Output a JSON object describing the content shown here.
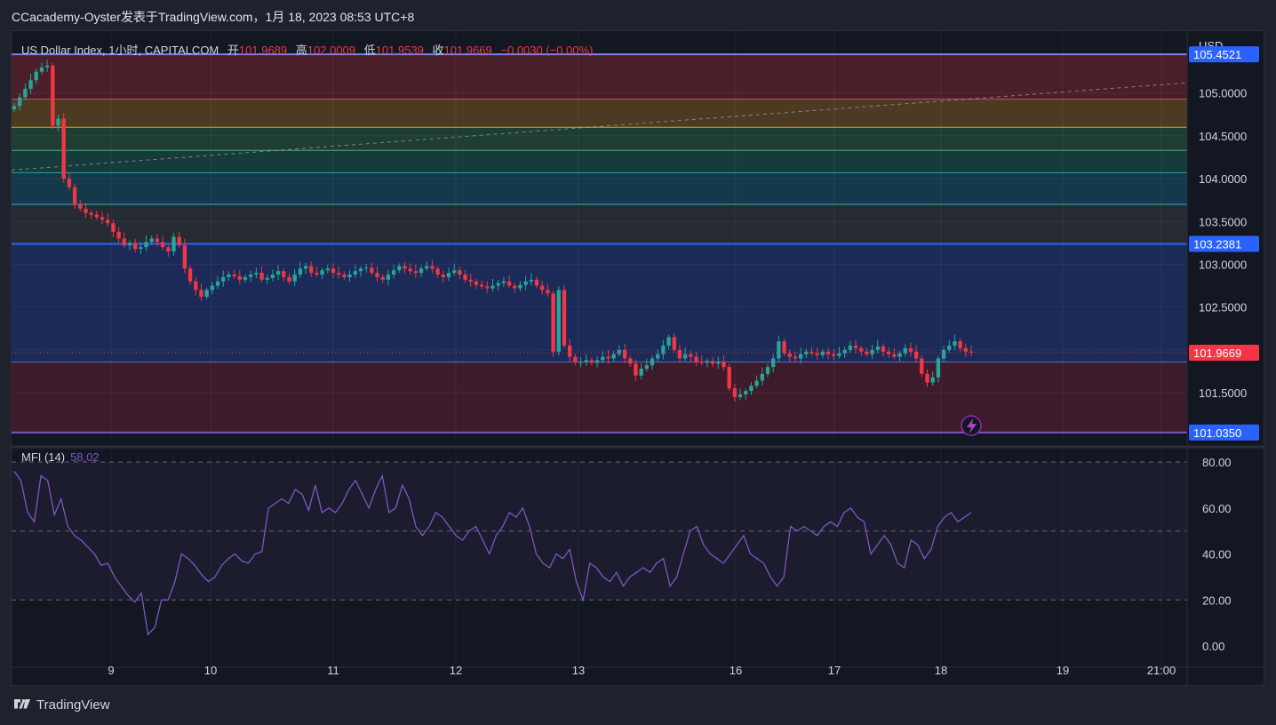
{
  "header": {
    "title": "CCacademy-Oyster发表于TradingView.com，1月 18, 2023 08:53 UTC+8"
  },
  "legend": {
    "symbol": "US Dollar Index, 1小时, CAPITALCOM",
    "open_label": "开",
    "open": "101.9689",
    "high_label": "高",
    "high": "102.0009",
    "low_label": "低",
    "low": "101.9539",
    "close_label": "收",
    "close": "101.9669",
    "change": "−0.0030 (−0.00%)"
  },
  "mfi_legend": {
    "name": "MFI (14)",
    "value": "58.02"
  },
  "footer": {
    "logo_text": "TradingView"
  },
  "colors": {
    "up": "#26a69a",
    "down": "#f23645",
    "mfi": "#7e57c2",
    "level_blue": "#2962ff",
    "level_purple": "#7e57c2"
  },
  "chart_data": [
    {
      "type": "candlestick",
      "currency_label": "USD",
      "ylim": [
        100.95,
        105.62
      ],
      "price_ticks": [
        "105.0000",
        "104.5000",
        "104.0000",
        "103.5000",
        "103.0000",
        "102.5000",
        "102.0000",
        "101.5000"
      ],
      "x_ticks": [
        "9",
        "10",
        "11",
        "12",
        "13",
        "16",
        "17",
        "18",
        "19",
        "21:00"
      ],
      "price_tags": [
        {
          "value": 105.4521,
          "label": "105.4521",
          "color": "#2962ff"
        },
        {
          "value": 103.2381,
          "label": "103.2381",
          "color": "#2962ff"
        },
        {
          "value": 101.9669,
          "label": "101.9669",
          "color": "#f23645"
        },
        {
          "value": 101.035,
          "label": "101.0350",
          "color": "#2962ff"
        }
      ],
      "fib_zones": [
        {
          "from": 105.4521,
          "to": 104.93,
          "color": "#4a1f2a"
        },
        {
          "from": 104.93,
          "to": 104.6,
          "color": "#4d3a22"
        },
        {
          "from": 104.6,
          "to": 104.33,
          "color": "#1f3e33"
        },
        {
          "from": 104.33,
          "to": 104.07,
          "color": "#173b3b"
        },
        {
          "from": 104.07,
          "to": 103.7,
          "color": "#14394a"
        },
        {
          "from": 103.7,
          "to": 103.2381,
          "color": "#262a33"
        },
        {
          "from": 103.2381,
          "to": 101.86,
          "color": "#1b2a57"
        },
        {
          "from": 101.86,
          "to": 101.035,
          "color": "#3d1b2a"
        }
      ],
      "fib_lines": [
        {
          "value": 105.4521,
          "color": "#7b7fe0"
        },
        {
          "value": 104.93,
          "color": "#c34a5a"
        },
        {
          "value": 104.6,
          "color": "#d4a62a"
        },
        {
          "value": 104.33,
          "color": "#4caf7a"
        },
        {
          "value": 104.07,
          "color": "#26a69a"
        },
        {
          "value": 103.7,
          "color": "#26b3c9"
        },
        {
          "value": 103.2381,
          "color": "#2962ff"
        },
        {
          "value": 101.86,
          "color": "#5b6bdc"
        },
        {
          "value": 101.035,
          "color": "#7e57c2"
        }
      ],
      "trendline": {
        "from": [
          0,
          104.1
        ],
        "to": [
          1,
          105.12
        ]
      },
      "close_series": [
        104.85,
        104.95,
        105.05,
        105.15,
        105.25,
        105.3,
        105.32,
        104.62,
        104.7,
        104.0,
        103.9,
        103.7,
        103.65,
        103.6,
        103.58,
        103.55,
        103.52,
        103.48,
        103.38,
        103.3,
        103.22,
        103.25,
        103.18,
        103.2,
        103.26,
        103.3,
        103.26,
        103.2,
        103.15,
        103.32,
        103.22,
        102.95,
        102.8,
        102.7,
        102.62,
        102.7,
        102.75,
        102.8,
        102.85,
        102.88,
        102.86,
        102.82,
        102.85,
        102.88,
        102.9,
        102.82,
        102.84,
        102.88,
        102.92,
        102.85,
        102.8,
        102.88,
        102.95,
        102.98,
        102.9,
        102.88,
        102.93,
        102.95,
        102.9,
        102.88,
        102.85,
        102.88,
        102.92,
        102.95,
        102.96,
        102.9,
        102.85,
        102.82,
        102.88,
        102.93,
        102.98,
        102.95,
        102.92,
        102.9,
        102.95,
        102.98,
        102.95,
        102.88,
        102.85,
        102.9,
        102.93,
        102.88,
        102.82,
        102.8,
        102.76,
        102.74,
        102.72,
        102.75,
        102.78,
        102.8,
        102.75,
        102.72,
        102.76,
        102.8,
        102.82,
        102.75,
        102.7,
        102.66,
        101.98,
        102.7,
        102.05,
        101.92,
        101.86,
        101.86,
        101.88,
        101.85,
        101.88,
        101.92,
        101.9,
        101.95,
        102.0,
        101.9,
        101.84,
        101.7,
        101.78,
        101.82,
        101.9,
        101.95,
        102.05,
        102.15,
        102.0,
        101.9,
        101.95,
        101.92,
        101.86,
        101.85,
        101.87,
        101.84,
        101.86,
        101.8,
        101.55,
        101.45,
        101.48,
        101.52,
        101.58,
        101.64,
        101.72,
        101.8,
        101.9,
        102.1,
        101.96,
        101.92,
        101.9,
        101.95,
        101.98,
        101.96,
        101.94,
        101.98,
        101.95,
        101.93,
        101.96,
        102.0,
        102.05,
        102.02,
        101.98,
        101.95,
        102.0,
        102.04,
        101.98,
        101.95,
        101.92,
        101.96,
        102.02,
        101.98,
        101.9,
        101.72,
        101.62,
        101.68,
        101.9,
        102.0,
        102.05,
        102.1,
        102.02,
        101.98,
        101.97
      ],
      "last_close": 101.9669
    },
    {
      "type": "line",
      "name": "MFI (14)",
      "ylim": [
        0,
        80
      ],
      "y_ticks": [
        "80.00",
        "60.00",
        "40.00",
        "20.00",
        "0.00"
      ],
      "bands": [
        80,
        50,
        20
      ],
      "values": [
        76,
        72,
        58,
        54,
        74,
        72,
        57,
        64,
        52,
        48,
        46,
        43,
        40,
        35,
        36,
        30,
        26,
        22,
        19,
        23,
        5,
        8,
        20,
        20,
        28,
        40,
        38,
        35,
        31,
        28,
        30,
        35,
        38,
        40,
        37,
        36,
        40,
        41,
        60,
        62,
        64,
        62,
        68,
        66,
        59,
        70,
        58,
        60,
        58,
        62,
        68,
        72,
        66,
        60,
        68,
        74,
        58,
        60,
        70,
        64,
        52,
        48,
        52,
        58,
        56,
        52,
        48,
        46,
        50,
        52,
        46,
        40,
        48,
        52,
        58,
        56,
        60,
        52,
        40,
        36,
        34,
        40,
        38,
        42,
        28,
        20,
        36,
        34,
        30,
        28,
        32,
        26,
        30,
        32,
        34,
        32,
        36,
        38,
        26,
        30,
        40,
        50,
        52,
        44,
        40,
        38,
        36,
        40,
        44,
        48,
        40,
        38,
        36,
        30,
        26,
        30,
        52,
        50,
        52,
        50,
        48,
        52,
        54,
        52,
        58,
        60,
        56,
        54,
        40,
        44,
        48,
        44,
        36,
        34,
        46,
        44,
        38,
        42,
        52,
        56,
        58,
        54,
        56,
        58
      ]
    }
  ]
}
